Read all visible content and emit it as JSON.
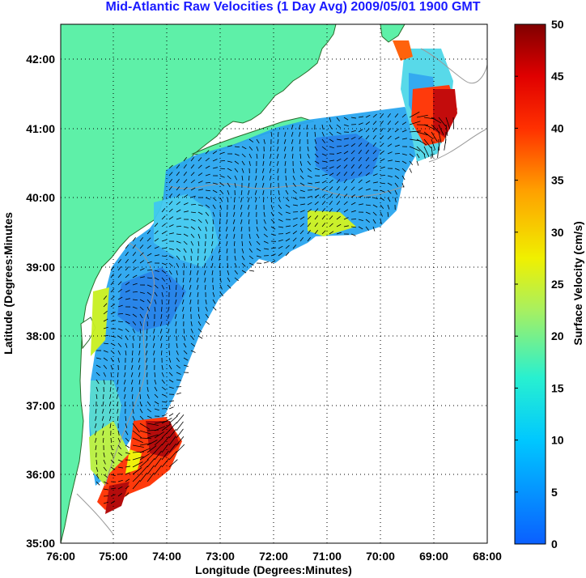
{
  "title": "Mid-Atlantic Raw Velocities (1 Day Avg) 2009/05/01 1900 GMT",
  "map": {
    "xlabel": "Longitude (Degrees:Minutes)",
    "ylabel": "Latitude (Degrees:Minutes",
    "x_ticks": [
      "76:00",
      "75:00",
      "74:00",
      "73:00",
      "72:00",
      "71:00",
      "70:00",
      "69:00",
      "68:00"
    ],
    "y_ticks": [
      "42:00",
      "41:00",
      "40:00",
      "39:00",
      "38:00",
      "37:00",
      "36:00",
      "35:00"
    ],
    "grid": "dotted",
    "land_color": "#5ef0a8",
    "coast_color": "#2a6a2a"
  },
  "colorbar": {
    "label": "Surface Velocity (cm/s)",
    "ticks": [
      "50",
      "45",
      "40",
      "35",
      "30",
      "25",
      "20",
      "15",
      "10",
      "5",
      "0"
    ],
    "min": 0,
    "max": 50
  }
}
